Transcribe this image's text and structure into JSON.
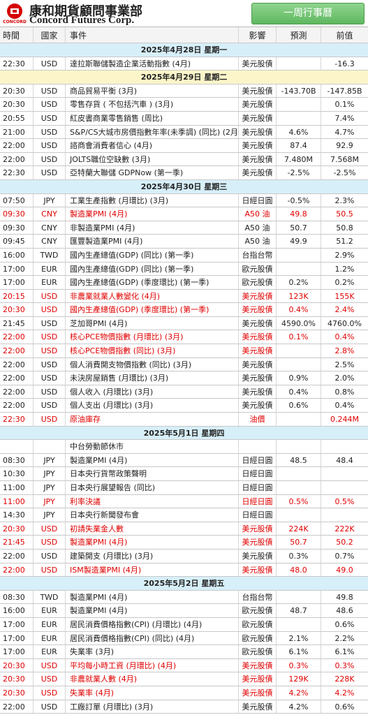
{
  "header": {
    "company_cn": "康和期貨顧問事業部",
    "company_en": "Concord Futures Corp.",
    "logo_text": "CONCORD",
    "button": "一周行事曆"
  },
  "columns": [
    "時間",
    "國家",
    "事件",
    "影響",
    "預測",
    "前值"
  ],
  "days": [
    {
      "date": "2025年4月28日  星期一",
      "background": "#d7eff9",
      "rows": [
        {
          "time": "22:30",
          "country": "USD",
          "event": "達拉斯聯儲製造企業活動指數 (4月)",
          "impact": "美元股債",
          "previous": "-16.3"
        }
      ]
    },
    {
      "date": "2025年4月29日  星期二",
      "background": "#fbf5c9",
      "rows": [
        {
          "time": "20:30",
          "country": "USD",
          "event": "商品貿易平衡 (3月)",
          "impact": "美元股債",
          "forecast": "-143.70B",
          "previous": "-147.85B"
        },
        {
          "time": "20:30",
          "country": "USD",
          "event": "零售存貨 ( 不包括汽車 ) (3月)",
          "impact": "美元股債",
          "previous": "0.1%"
        },
        {
          "time": "20:55",
          "country": "USD",
          "event": "紅皮書商業零售銷售 (周比)",
          "impact": "美元股債",
          "previous": "7.4%"
        },
        {
          "time": "21:00",
          "country": "USD",
          "event": "S&P/CS大城市房價指數年率(未季調) (同比) (2月)",
          "impact": "美元股債",
          "forecast": "4.6%",
          "previous": "4.7%"
        },
        {
          "time": "22:00",
          "country": "USD",
          "event": "諮商會消費者信心 (4月)",
          "impact": "美元股債",
          "forecast": "87.4",
          "previous": "92.9"
        },
        {
          "time": "22:00",
          "country": "USD",
          "event": "JOLTS職位空缺數 (3月)",
          "impact": "美元股債",
          "forecast": "7.480M",
          "previous": "7.568M"
        },
        {
          "time": "22:30",
          "country": "USD",
          "event": "亞特蘭大聯儲 GDPNow (第一季)",
          "impact": "美元股債",
          "forecast": "-2.5%",
          "previous": "-2.5%"
        }
      ]
    },
    {
      "date": "2025年4月30日  星期三",
      "background": "#d7eff9",
      "rows": [
        {
          "time": "07:50",
          "country": "JPY",
          "event": "工業生產指數 (月環比) (3月)",
          "impact": "日經日圓",
          "forecast": "-0.5%",
          "previous": "2.3%"
        },
        {
          "time": "09:30",
          "country": "CNY",
          "event": "製造業PMI (4月)",
          "impact": "A50 油",
          "forecast": "49.8",
          "previous": "50.5",
          "red": true
        },
        {
          "time": "09:30",
          "country": "CNY",
          "event": "非製造業PMI (4月)",
          "impact": "A50 油",
          "forecast": "50.7",
          "previous": "50.8"
        },
        {
          "time": "09:45",
          "country": "CNY",
          "event": "匯豐製造業PMI (4月)",
          "impact": "A50 油",
          "forecast": "49.9",
          "previous": "51.2"
        },
        {
          "time": "16:00",
          "country": "TWD",
          "event": "國內生產總值(GDP) (同比) (第一季)",
          "impact": "台指台幣",
          "previous": "2.9%"
        },
        {
          "time": "17:00",
          "country": "EUR",
          "event": "國內生產總值(GDP) (同比) (第一季)",
          "impact": "歐元股債",
          "previous": "1.2%"
        },
        {
          "time": "17:00",
          "country": "EUR",
          "event": "國內生產總值(GDP) (季度環比) (第一季)",
          "impact": "歐元股債",
          "forecast": "0.2%",
          "previous": "0.2%"
        },
        {
          "time": "20:15",
          "country": "USD",
          "event": "非農業就業人數變化 (4月)",
          "impact": "美元股債",
          "forecast": "123K",
          "previous": "155K",
          "red": true
        },
        {
          "time": "20:30",
          "country": "USD",
          "event": "國內生產總值(GDP) (季度環比) (第一季)",
          "impact": "美元股債",
          "forecast": "0.4%",
          "previous": "2.4%",
          "red": true
        },
        {
          "time": "21:45",
          "country": "USD",
          "event": "芝加哥PMI (4月)",
          "impact": "美元股債",
          "forecast": "4590.0%",
          "previous": "4760.0%"
        },
        {
          "time": "22:00",
          "country": "USD",
          "event": "核心PCE物價指數 (月環比) (3月)",
          "impact": "美元股債",
          "forecast": "0.1%",
          "previous": "0.4%",
          "red": true
        },
        {
          "time": "22:00",
          "country": "USD",
          "event": "核心PCE物價指數 (同比) (3月)",
          "impact": "美元股債",
          "previous": "2.8%",
          "red": true
        },
        {
          "time": "22:00",
          "country": "USD",
          "event": "個人消費開支物價指數 (同比) (3月)",
          "impact": "美元股債",
          "previous": "2.5%"
        },
        {
          "time": "22:00",
          "country": "USD",
          "event": "未決房屋銷售 (月環比) (3月)",
          "impact": "美元股債",
          "forecast": "0.9%",
          "previous": "2.0%"
        },
        {
          "time": "22:00",
          "country": "USD",
          "event": "個人收入 (月環比) (3月)",
          "impact": "美元股債",
          "forecast": "0.4%",
          "previous": "0.8%"
        },
        {
          "time": "22:00",
          "country": "USD",
          "event": "個人支出 (月環比) (3月)",
          "impact": "美元股債",
          "forecast": "0.6%",
          "previous": "0.4%"
        },
        {
          "time": "22:30",
          "country": "USD",
          "event": "原油庫存",
          "impact": "油價",
          "previous": "0.244M",
          "red": true
        }
      ]
    },
    {
      "date": "2025年5月1日  星期四",
      "background": "#d7eff9",
      "rows": [
        {
          "event": "中台勞動節休市"
        },
        {
          "time": "08:30",
          "country": "JPY",
          "event": "製造業PMI (4月)",
          "impact": "日經日圓",
          "forecast": "48.5",
          "previous": "48.4"
        },
        {
          "time": "10:30",
          "country": "JPY",
          "event": "日本央行貨幣政策聲明",
          "impact": "日經日圓"
        },
        {
          "time": "11:00",
          "country": "JPY",
          "event": "日本央行展望報告 (同比)",
          "impact": "日經日圓"
        },
        {
          "time": "11:00",
          "country": "JPY",
          "event": "利率決議",
          "impact": "日經日圓",
          "forecast": "0.5%",
          "previous": "0.5%",
          "red": true
        },
        {
          "time": "14:30",
          "country": "JPY",
          "event": "日本央行新聞發布會",
          "impact": "日經日圓"
        },
        {
          "time": "20:30",
          "country": "USD",
          "event": "初請失業金人數",
          "impact": "美元股債",
          "forecast": "224K",
          "previous": "222K",
          "red": true
        },
        {
          "time": "21:45",
          "country": "USD",
          "event": "製造業PMI (4月)",
          "impact": "美元股債",
          "forecast": "50.7",
          "previous": "50.2",
          "red": true
        },
        {
          "time": "22:00",
          "country": "USD",
          "event": "建築開支 (月環比) (3月)",
          "impact": "美元股債",
          "forecast": "0.3%",
          "previous": "0.7%"
        },
        {
          "time": "22:00",
          "country": "USD",
          "event": "ISM製造業PMI (4月)",
          "impact": "美元股債",
          "forecast": "48.0",
          "previous": "49.0",
          "red": true
        }
      ]
    },
    {
      "date": "2025年5月2日  星期五",
      "background": "#d7eff9",
      "rows": [
        {
          "time": "08:30",
          "country": "TWD",
          "event": "製造業PMI (4月)",
          "impact": "台指台幣",
          "previous": "49.8"
        },
        {
          "time": "16:00",
          "country": "EUR",
          "event": "製造業PMI (4月)",
          "impact": "歐元股債",
          "forecast": "48.7",
          "previous": "48.6"
        },
        {
          "time": "17:00",
          "country": "EUR",
          "event": "居民消費價格指數(CPI) (月環比) (4月)",
          "impact": "歐元股債",
          "previous": "0.6%"
        },
        {
          "time": "17:00",
          "country": "EUR",
          "event": "居民消費價格指數(CPI) (同比) (4月)",
          "impact": "歐元股債",
          "forecast": "2.1%",
          "previous": "2.2%"
        },
        {
          "time": "17:00",
          "country": "EUR",
          "event": "失業率 (3月)",
          "impact": "歐元股債",
          "forecast": "6.1%",
          "previous": "6.1%"
        },
        {
          "time": "20:30",
          "country": "USD",
          "event": "平均每小時工資 (月環比) (4月)",
          "impact": "美元股債",
          "forecast": "0.3%",
          "previous": "0.3%",
          "red": true
        },
        {
          "time": "20:30",
          "country": "USD",
          "event": "非農就業人數 (4月)",
          "impact": "美元股債",
          "forecast": "129K",
          "previous": "228K",
          "red": true
        },
        {
          "time": "20:30",
          "country": "USD",
          "event": "失業率 (4月)",
          "impact": "美元股債",
          "forecast": "4.2%",
          "previous": "4.2%",
          "red": true
        },
        {
          "time": "22:00",
          "country": "USD",
          "event": "工廠訂單 (月環比) (3月)",
          "impact": "美元股債",
          "forecast": "4.2%",
          "previous": "0.6%"
        }
      ]
    }
  ]
}
